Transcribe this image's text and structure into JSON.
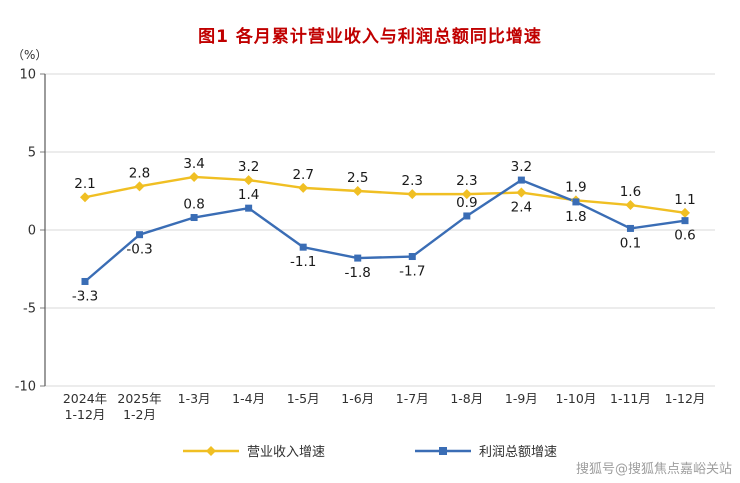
{
  "title": "图1  各月累计营业收入与利润总额同比增速",
  "watermark": "搜狐号@搜狐焦点嘉峪关站",
  "colors": {
    "title": "#c00000",
    "text": "#303030",
    "value_label": "#1a1a1a",
    "grid": "#d9d9d9",
    "axis": "#595959",
    "tick": "#7f7f7f",
    "revenue": "#f0bf23",
    "profit": "#3a6db5",
    "watermark": "#9e9e9e"
  },
  "chart_data": {
    "type": "line",
    "title": "图1  各月累计营业收入与利润总额同比增速",
    "xlabel": "",
    "ylabel": "（%）",
    "ylim": [
      -10,
      10
    ],
    "yticks": [
      10,
      5,
      0,
      -5,
      -10
    ],
    "grid": true,
    "legend_position": "bottom",
    "categories": [
      "2024年1-12月",
      "2025年1-2月",
      "1-3月",
      "1-4月",
      "1-5月",
      "1-6月",
      "1-7月",
      "1-8月",
      "1-9月",
      "1-10月",
      "1-11月",
      "1-12月"
    ],
    "categories_display": [
      [
        "2024年",
        "1-12月"
      ],
      [
        "2025年",
        "1-2月"
      ],
      [
        "1-3月"
      ],
      [
        "1-4月"
      ],
      [
        "1-5月"
      ],
      [
        "1-6月"
      ],
      [
        "1-7月"
      ],
      [
        "1-8月"
      ],
      [
        "1-9月"
      ],
      [
        "1-10月"
      ],
      [
        "1-11月"
      ],
      [
        "1-12月"
      ]
    ],
    "series": [
      {
        "name": "营业收入增速",
        "color": "#f0bf23",
        "marker": "diamond",
        "values": [
          2.1,
          2.8,
          3.4,
          3.2,
          2.7,
          2.5,
          2.3,
          2.3,
          2.4,
          1.9,
          1.6,
          1.1
        ],
        "label_pos": [
          "above",
          "above",
          "above",
          "above",
          "above",
          "above",
          "above",
          "above",
          "below",
          "above",
          "above",
          "above"
        ]
      },
      {
        "name": "利润总额增速",
        "color": "#3a6db5",
        "marker": "square",
        "values": [
          -3.3,
          -0.3,
          0.8,
          1.4,
          -1.1,
          -1.8,
          -1.7,
          0.9,
          3.2,
          1.8,
          0.1,
          0.6
        ],
        "label_pos": [
          "below",
          "below",
          "above",
          "above",
          "below",
          "below",
          "below",
          "above",
          "above",
          "below",
          "below",
          "below"
        ]
      }
    ]
  }
}
